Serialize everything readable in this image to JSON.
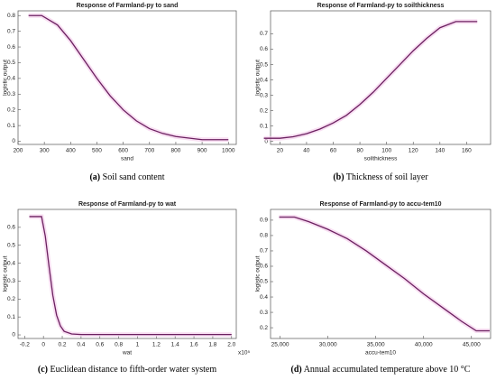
{
  "chart_data": [
    {
      "type": "line",
      "title": "Response of Farmland-py to sand",
      "xlabel": "sand",
      "ylabel": "logistic output",
      "panel": "(a)",
      "caption": "Soil sand content",
      "x": [
        240,
        290,
        350,
        400,
        450,
        500,
        550,
        600,
        650,
        700,
        750,
        800,
        850,
        900,
        1000
      ],
      "series": [
        {
          "name": "sand",
          "color": "#6b2060",
          "values": [
            0.8,
            0.8,
            0.74,
            0.64,
            0.52,
            0.4,
            0.29,
            0.2,
            0.13,
            0.08,
            0.05,
            0.03,
            0.02,
            0.01,
            0.01
          ]
        }
      ],
      "xlim": [
        200,
        1030
      ],
      "xticks": [
        200,
        300,
        400,
        500,
        600,
        700,
        800,
        900,
        1000
      ],
      "ylim": [
        -0.02,
        0.83
      ],
      "yticks": [
        0,
        0.1,
        0.2,
        0.3,
        0.4,
        0.5,
        0.6,
        0.7,
        0.8
      ]
    },
    {
      "type": "line",
      "title": "Response of Farmland-py to soilthickness",
      "xlabel": "soilthickness",
      "ylabel": "logistic output",
      "panel": "(b)",
      "caption": "Thickness of soil layer",
      "x": [
        8,
        20,
        30,
        40,
        50,
        60,
        70,
        80,
        90,
        100,
        110,
        120,
        130,
        140,
        152,
        168
      ],
      "series": [
        {
          "name": "soilthickness",
          "color": "#6b2060",
          "values": [
            0.02,
            0.02,
            0.03,
            0.05,
            0.08,
            0.12,
            0.17,
            0.24,
            0.32,
            0.41,
            0.5,
            0.59,
            0.67,
            0.74,
            0.78,
            0.78
          ]
        }
      ],
      "xlim": [
        13,
        178
      ],
      "xticks": [
        20,
        40,
        60,
        80,
        100,
        120,
        140,
        160
      ],
      "ylim": [
        -0.02,
        0.85
      ],
      "yticks": [
        0,
        0.1,
        0.2,
        0.3,
        0.4,
        0.5,
        0.6,
        0.7
      ]
    },
    {
      "type": "line",
      "title": "Response of Farmland-py to wat",
      "xlabel": "wat",
      "ylabel": "logistic output",
      "panel": "(c)",
      "caption": "Euclidean distance to fifth-order water system",
      "x_multiplier": "x10⁵",
      "x": [
        -0.15,
        -0.02,
        0.02,
        0.06,
        0.1,
        0.14,
        0.18,
        0.22,
        0.3,
        0.4,
        2.0
      ],
      "series": [
        {
          "name": "wat",
          "color": "#6b2060",
          "values": [
            0.66,
            0.66,
            0.55,
            0.38,
            0.22,
            0.11,
            0.05,
            0.02,
            0.005,
            0.002,
            0.002
          ]
        }
      ],
      "xlim": [
        -0.27,
        2.05
      ],
      "xticks": [
        -0.2,
        0,
        0.2,
        0.4,
        0.6,
        0.8,
        1,
        1.2,
        1.4,
        1.6,
        1.8,
        {
          "value": 2,
          "label": "2.0"
        }
      ],
      "ylim": [
        -0.02,
        0.7
      ],
      "yticks": [
        0,
        0.1,
        0.2,
        0.3,
        0.4,
        0.5,
        0.6
      ]
    },
    {
      "type": "line",
      "title": "Response of Farmland-py to accu-tem10",
      "xlabel": "accu-tem10",
      "ylabel": "logistic output",
      "panel": "(d)",
      "caption": "Annual accumulated temperature above 10 °C",
      "x": [
        24900,
        26500,
        28000,
        30000,
        32000,
        34000,
        36000,
        38000,
        40000,
        42000,
        44000,
        45500,
        46900
      ],
      "series": [
        {
          "name": "accu-tem10",
          "color": "#6b2060",
          "values": [
            0.92,
            0.92,
            0.89,
            0.84,
            0.78,
            0.7,
            0.61,
            0.52,
            0.42,
            0.33,
            0.24,
            0.18,
            0.18
          ]
        }
      ],
      "xlim": [
        24000,
        47000
      ],
      "xticks": [
        {
          "value": 25000,
          "label": "25,000"
        },
        {
          "value": 30000,
          "label": "30,000"
        },
        {
          "value": 35000,
          "label": "35,000"
        },
        {
          "value": 40000,
          "label": "40,000"
        },
        {
          "value": 45000,
          "label": "45,000"
        }
      ],
      "ylim": [
        0.13,
        0.97
      ],
      "yticks": [
        0.2,
        0.3,
        0.4,
        0.5,
        0.6,
        0.7,
        0.8,
        0.9
      ]
    }
  ]
}
